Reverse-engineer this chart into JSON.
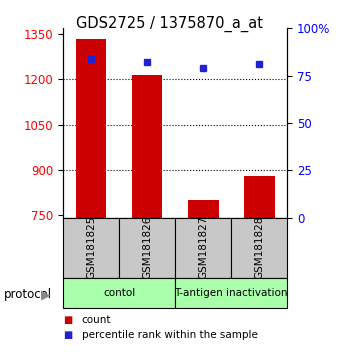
{
  "title": "GDS2725 / 1375870_a_at",
  "samples": [
    "GSM181825",
    "GSM181826",
    "GSM181827",
    "GSM181828"
  ],
  "bar_values": [
    1335,
    1215,
    800,
    878
  ],
  "percentile_values": [
    84,
    82,
    79,
    81
  ],
  "bar_color": "#cc0000",
  "dot_color": "#2222cc",
  "ylim_left": [
    740,
    1370
  ],
  "yticks_left": [
    750,
    900,
    1050,
    1200,
    1350
  ],
  "ylim_right": [
    0,
    100
  ],
  "yticks_right": [
    0,
    25,
    50,
    75,
    100
  ],
  "yticklabels_right": [
    "0",
    "25",
    "50",
    "75",
    "100%"
  ],
  "bar_bottom": 740,
  "grid_values": [
    900,
    1050,
    1200
  ],
  "groups": [
    {
      "label": "contol",
      "indices": [
        0,
        1
      ],
      "color": "#aaffaa"
    },
    {
      "label": "T-antigen inactivation",
      "indices": [
        2,
        3
      ],
      "color": "#aaffaa"
    }
  ],
  "protocol_label": "protocol",
  "legend_items": [
    {
      "color": "#cc0000",
      "label": "count"
    },
    {
      "color": "#2222cc",
      "label": "percentile rank within the sample"
    }
  ],
  "title_fontsize": 10.5,
  "tick_fontsize": 8.5,
  "bg_color": "#ffffff",
  "plot_bg_color": "#ffffff",
  "bar_width": 0.55,
  "xlim": [
    -0.5,
    3.5
  ]
}
